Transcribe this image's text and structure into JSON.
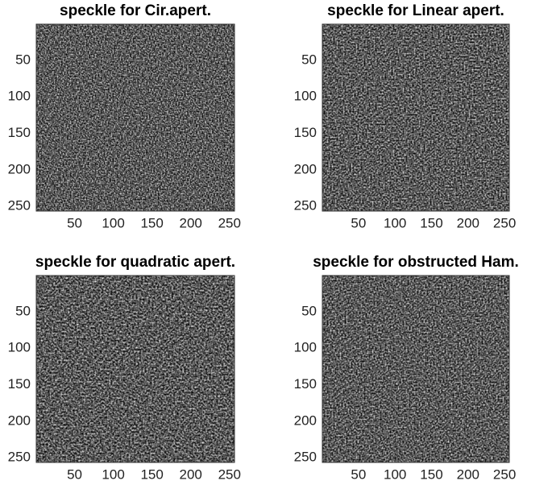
{
  "chart_data": [
    {
      "type": "image",
      "title": "speckle for Cir.apert.",
      "xlim": [
        0.5,
        256.5
      ],
      "ylim": [
        0.5,
        256.5
      ],
      "xticks": [
        50,
        100,
        150,
        200,
        250
      ],
      "yticks": [
        50,
        100,
        150,
        200,
        250
      ]
    },
    {
      "type": "image",
      "title": "speckle for Linear apert.",
      "xlim": [
        0.5,
        256.5
      ],
      "ylim": [
        0.5,
        256.5
      ],
      "xticks": [
        50,
        100,
        150,
        200,
        250
      ],
      "yticks": [
        50,
        100,
        150,
        200,
        250
      ]
    },
    {
      "type": "image",
      "title": "speckle for quadratic apert.",
      "xlim": [
        0.5,
        256.5
      ],
      "ylim": [
        0.5,
        256.5
      ],
      "xticks": [
        50,
        100,
        150,
        200,
        250
      ],
      "yticks": [
        50,
        100,
        150,
        200,
        250
      ]
    },
    {
      "type": "image",
      "title": "speckle for obstructed Ham.",
      "xlim": [
        0.5,
        256.5
      ],
      "ylim": [
        0.5,
        256.5
      ],
      "xticks": [
        50,
        100,
        150,
        200,
        250
      ],
      "yticks": [
        50,
        100,
        150,
        200,
        250
      ]
    }
  ]
}
